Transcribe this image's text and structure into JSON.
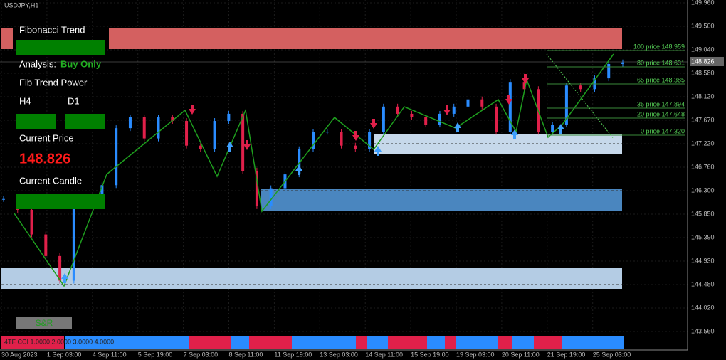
{
  "header": {
    "symbol": "USDJPY,H1"
  },
  "panel": {
    "title": "Fibonacci Trend",
    "analysis_label": "Analysis:",
    "analysis_value": "Buy Only",
    "power_label": "Fib Trend Power",
    "tf1": "H4",
    "tf2": "D1",
    "price_label": "Current Price",
    "price_value": "148.826",
    "candle_label": "Current Candle",
    "button": "S&R"
  },
  "fib_levels": [
    "100 price 148.959",
    "80 price 148.631",
    "65 price 148.385",
    "35 price 147.894",
    "20 price 147.648",
    "0 price 147.320"
  ],
  "price_axis": [
    "149.960",
    "149.500",
    "149.040",
    "148.580",
    "148.120",
    "147.670",
    "147.220",
    "146.760",
    "146.300",
    "145.850",
    "145.390",
    "144.930",
    "144.480",
    "144.020",
    "143.560"
  ],
  "current_price_tag": "148.826",
  "time_axis": [
    "30 Aug 2023",
    "1 Sep 03:00",
    "4 Sep 11:00",
    "5 Sep 19:00",
    "7 Sep 03:00",
    "8 Sep 11:00",
    "11 Sep 19:00",
    "13 Sep 03:00",
    "14 Sep 11:00",
    "15 Sep 19:00",
    "19 Sep 03:00",
    "20 Sep 11:00",
    "21 Sep 19:00",
    "25 Sep 03:00"
  ],
  "indicator": {
    "label": "4TF CCI 1.0000 2.0000 3.0000 4.0000"
  },
  "chart": {
    "closes": [
      146.14,
      145.93,
      145.45,
      145.03,
      144.55,
      146.07,
      146.14,
      146.41,
      147.52,
      147.73,
      147.32,
      147.73,
      147.66,
      147.18,
      147.11,
      147.66,
      147.8,
      146.69,
      146.0,
      146.35,
      146.62,
      147.11,
      147.45,
      147.45,
      147.18,
      147.11,
      147.45,
      147.94,
      147.8,
      147.73,
      147.59,
      147.8,
      147.94,
      148.08,
      147.94,
      147.45,
      148.42,
      148.28,
      147.45,
      147.59,
      148.35,
      148.28,
      148.49,
      148.77,
      148.8
    ]
  }
}
